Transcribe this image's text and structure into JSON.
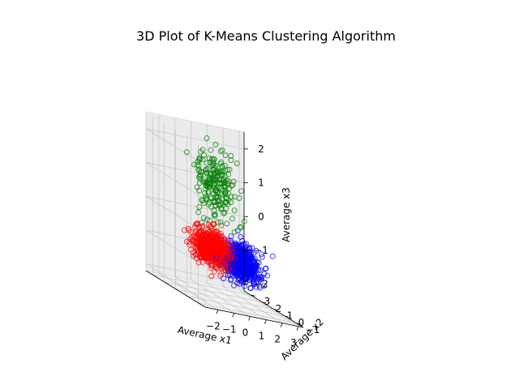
{
  "chart_data": {
    "type": "scatter",
    "title": "3D Plot of K-Means Clustering Algorithm",
    "xlabel": "Average x1",
    "ylabel": "Average x2",
    "zlabel": "Average x3",
    "xlim": [
      -2.8,
      3.3
    ],
    "ylim": [
      -1.6,
      3.6
    ],
    "zlim": [
      -2.2,
      2.5
    ],
    "xticks": [
      -2,
      -1,
      0,
      1,
      2,
      3
    ],
    "yticks": [
      -1,
      0,
      1,
      2,
      3
    ],
    "zticks": [
      -2,
      -1,
      0,
      1,
      2
    ],
    "marker": "open-circle",
    "grid": true,
    "series": [
      {
        "color": "#ff0000",
        "center": [
          -0.4,
          1.2,
          -0.8
        ],
        "spread": [
          0.45,
          0.45,
          0.25
        ],
        "count": 650
      },
      {
        "color": "#0000ff",
        "center": [
          1.2,
          0.9,
          -1.0
        ],
        "spread": [
          0.45,
          0.55,
          0.25
        ],
        "count": 650
      },
      {
        "color": "#008000",
        "center": [
          0.2,
          1.8,
          1.0
        ],
        "spread": [
          0.45,
          0.55,
          0.55
        ],
        "count": 220
      }
    ]
  }
}
